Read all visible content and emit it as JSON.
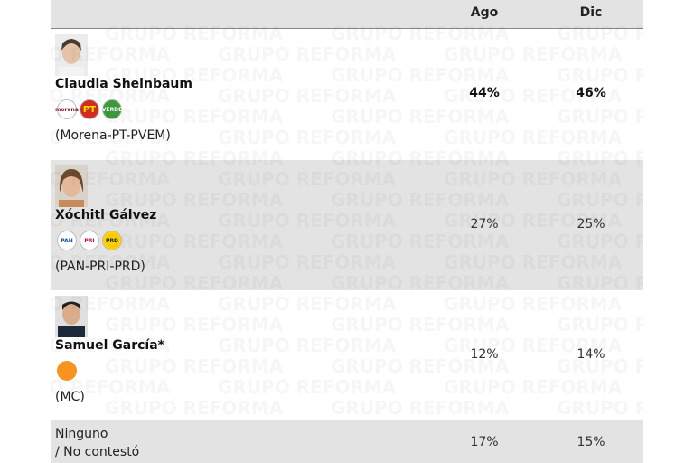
{
  "watermark": "GRUPO REFORMA",
  "table": {
    "header": [
      "",
      "Ago",
      "Dic"
    ],
    "rows": [
      {
        "name": "Claudia Sheinbaum",
        "logos": [
          "morena",
          "PT",
          "VERDE"
        ],
        "party": "(Morena-PT-PVEM)",
        "values": [
          "44%",
          "46%"
        ],
        "bold": true
      },
      {
        "name": "Xóchitl Gálvez",
        "logos": [
          "PAN",
          "PRI",
          "PRD"
        ],
        "party": "(PAN-PRI-PRD)",
        "values": [
          "27%",
          "25%"
        ],
        "bold": false
      },
      {
        "name": "Samuel García*",
        "logos": [],
        "party": "(MC)",
        "values": [
          "12%",
          "14%"
        ],
        "bold": false
      },
      {
        "name": "Ninguno",
        "name2": "/ No contestó",
        "values": [
          "17%",
          "15%"
        ],
        "bold": false
      }
    ]
  }
}
